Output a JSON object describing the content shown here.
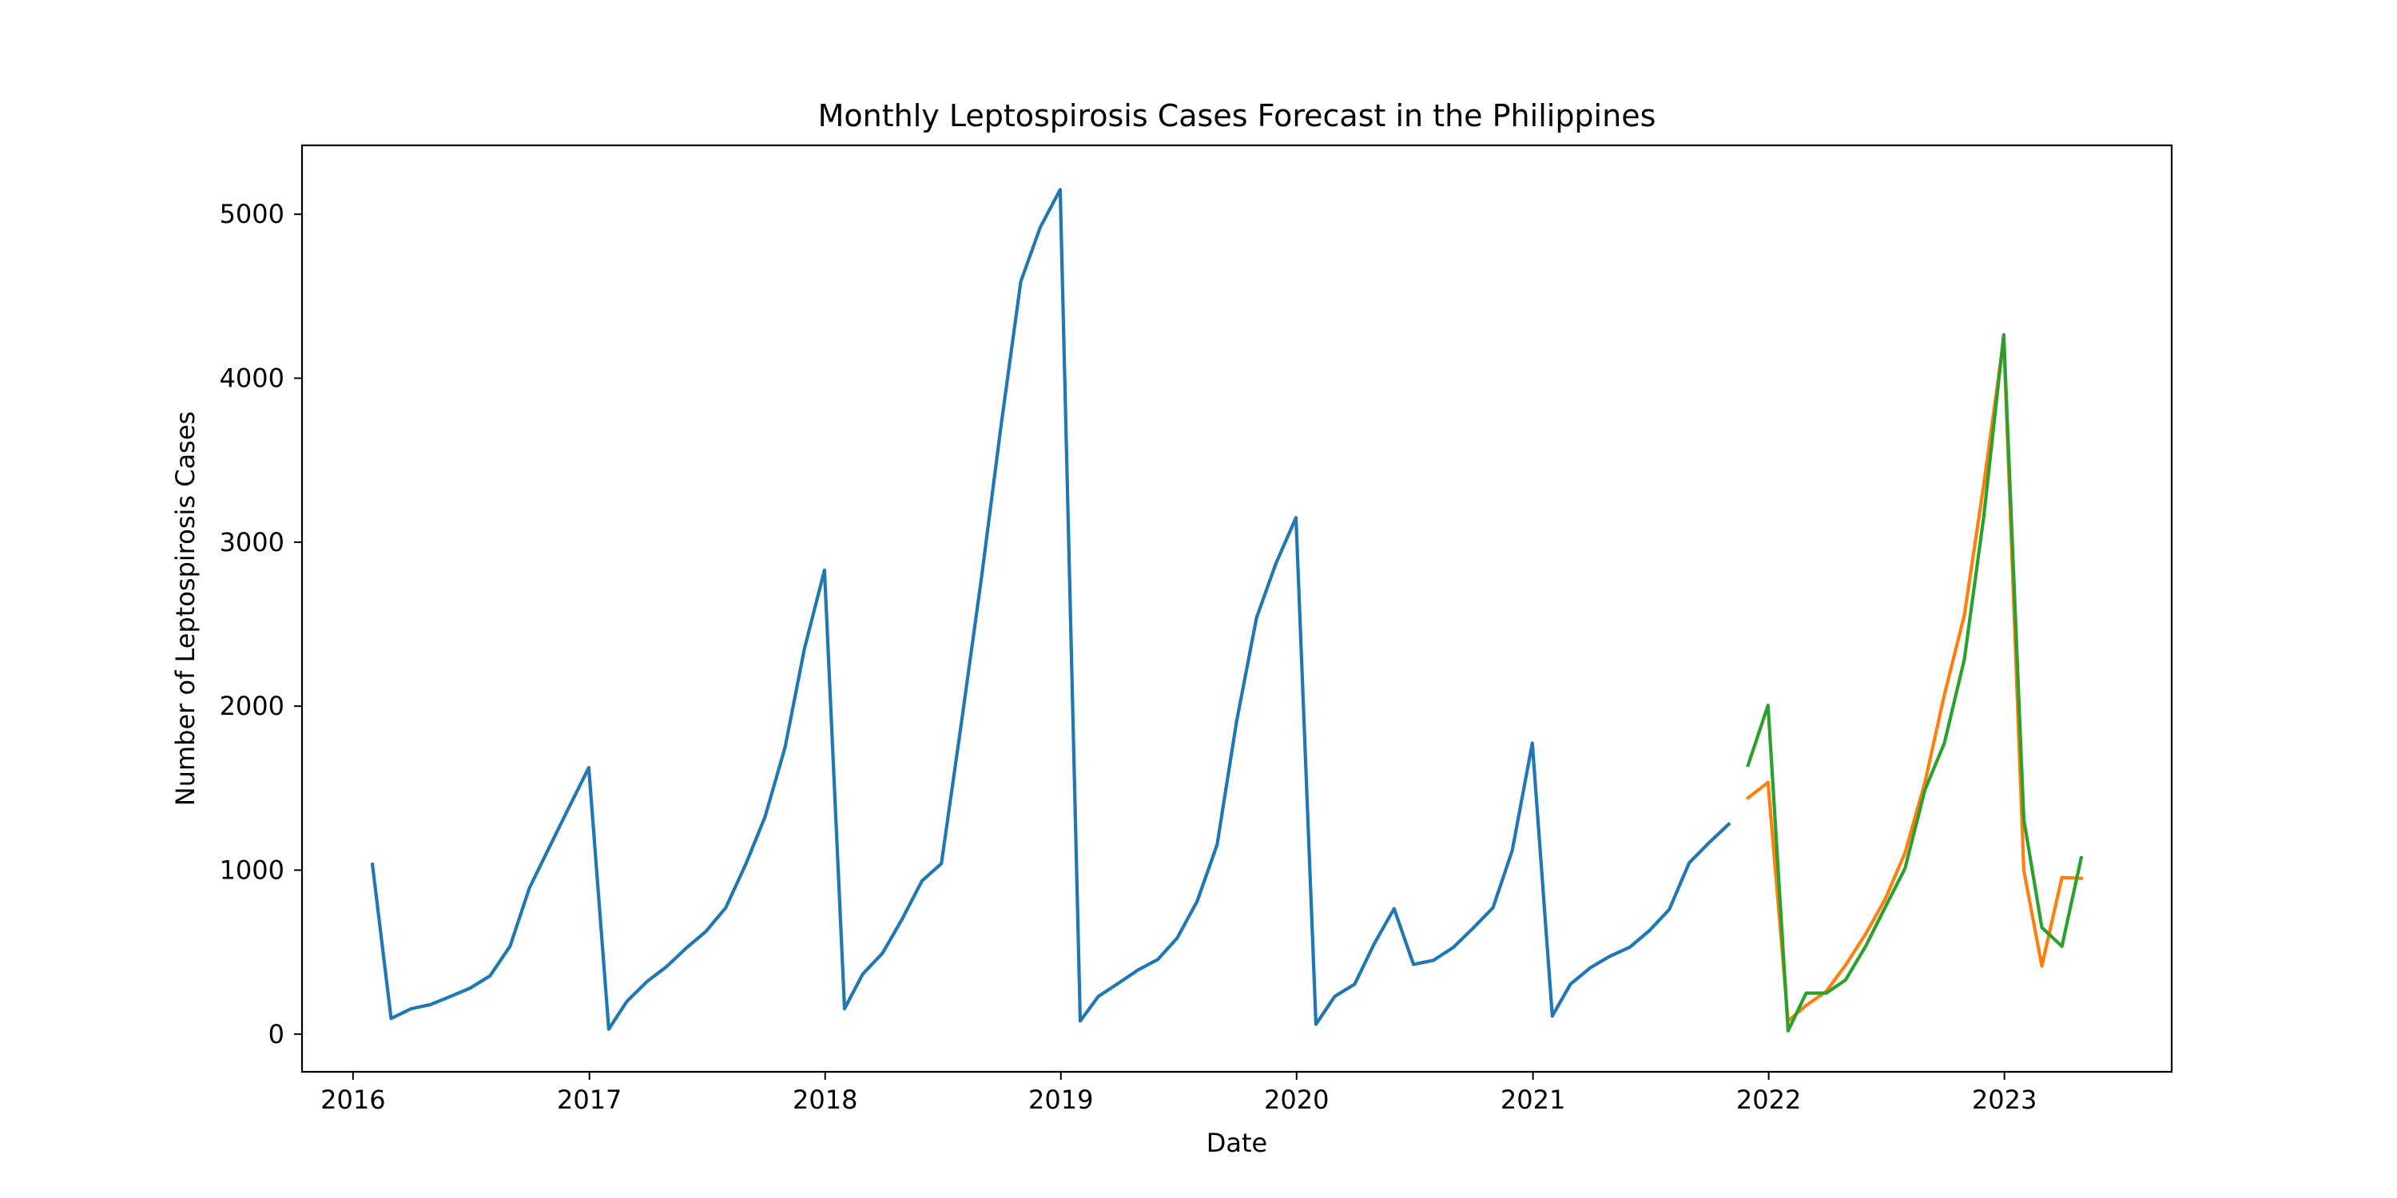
{
  "chart_data": {
    "type": "line",
    "title": "Monthly Leptospirosis Cases Forecast in the Philippines",
    "xlabel": "Date",
    "ylabel": "Number of Leptospirosis Cases",
    "x_type": "date",
    "xlim": [
      "2015-10-14",
      "2023-09-17"
    ],
    "ylim": [
      -230,
      5420
    ],
    "x_ticks": [
      "2016",
      "2017",
      "2018",
      "2019",
      "2020",
      "2021",
      "2022",
      "2023"
    ],
    "y_ticks": [
      0,
      1000,
      2000,
      3000,
      4000,
      5000
    ],
    "grid": false,
    "legend": "none",
    "series": [
      {
        "color": "#1f77b4",
        "points": [
          [
            "2016-01-31",
            1035
          ],
          [
            "2016-02-29",
            95
          ],
          [
            "2016-03-31",
            155
          ],
          [
            "2016-04-30",
            180
          ],
          [
            "2016-05-31",
            230
          ],
          [
            "2016-06-30",
            280
          ],
          [
            "2016-07-31",
            355
          ],
          [
            "2016-08-31",
            535
          ],
          [
            "2016-09-30",
            890
          ],
          [
            "2016-10-31",
            1140
          ],
          [
            "2016-11-30",
            1380
          ],
          [
            "2016-12-31",
            1625
          ],
          [
            "2017-01-31",
            30
          ],
          [
            "2017-02-28",
            200
          ],
          [
            "2017-03-31",
            320
          ],
          [
            "2017-04-30",
            410
          ],
          [
            "2017-05-31",
            525
          ],
          [
            "2017-06-30",
            625
          ],
          [
            "2017-07-31",
            770
          ],
          [
            "2017-08-31",
            1035
          ],
          [
            "2017-09-30",
            1325
          ],
          [
            "2017-10-31",
            1750
          ],
          [
            "2017-11-30",
            2350
          ],
          [
            "2017-12-31",
            2830
          ],
          [
            "2018-01-31",
            155
          ],
          [
            "2018-02-28",
            365
          ],
          [
            "2018-03-31",
            495
          ],
          [
            "2018-04-30",
            700
          ],
          [
            "2018-05-31",
            935
          ],
          [
            "2018-06-30",
            1040
          ],
          [
            "2018-07-31",
            1900
          ],
          [
            "2018-08-31",
            2780
          ],
          [
            "2018-09-30",
            3700
          ],
          [
            "2018-10-31",
            4590
          ],
          [
            "2018-11-30",
            4920
          ],
          [
            "2018-12-31",
            5150
          ],
          [
            "2019-01-31",
            80
          ],
          [
            "2019-02-28",
            230
          ],
          [
            "2019-03-31",
            310
          ],
          [
            "2019-04-30",
            390
          ],
          [
            "2019-05-31",
            455
          ],
          [
            "2019-06-30",
            585
          ],
          [
            "2019-07-31",
            810
          ],
          [
            "2019-08-31",
            1155
          ],
          [
            "2019-09-30",
            1905
          ],
          [
            "2019-10-31",
            2540
          ],
          [
            "2019-11-30",
            2870
          ],
          [
            "2019-12-31",
            3150
          ],
          [
            "2020-01-31",
            60
          ],
          [
            "2020-02-29",
            230
          ],
          [
            "2020-03-31",
            305
          ],
          [
            "2020-04-30",
            550
          ],
          [
            "2020-05-31",
            765
          ],
          [
            "2020-06-30",
            425
          ],
          [
            "2020-07-31",
            450
          ],
          [
            "2020-08-31",
            530
          ],
          [
            "2020-09-30",
            645
          ],
          [
            "2020-10-31",
            770
          ],
          [
            "2020-11-30",
            1120
          ],
          [
            "2020-12-31",
            1775
          ],
          [
            "2021-01-31",
            110
          ],
          [
            "2021-02-28",
            305
          ],
          [
            "2021-03-31",
            405
          ],
          [
            "2021-04-30",
            475
          ],
          [
            "2021-05-31",
            530
          ],
          [
            "2021-06-30",
            630
          ],
          [
            "2021-07-31",
            760
          ],
          [
            "2021-08-31",
            1045
          ],
          [
            "2021-09-30",
            1165
          ],
          [
            "2021-10-31",
            1280
          ]
        ]
      },
      {
        "color": "#ff7f0e",
        "points": [
          [
            "2021-11-30",
            1440
          ],
          [
            "2021-12-31",
            1535
          ],
          [
            "2022-01-31",
            80
          ],
          [
            "2022-02-28",
            175
          ],
          [
            "2022-03-31",
            260
          ],
          [
            "2022-04-30",
            420
          ],
          [
            "2022-05-31",
            610
          ],
          [
            "2022-06-30",
            820
          ],
          [
            "2022-07-31",
            1105
          ],
          [
            "2022-08-31",
            1535
          ],
          [
            "2022-09-30",
            2070
          ],
          [
            "2022-10-31",
            2555
          ],
          [
            "2022-11-30",
            3350
          ],
          [
            "2022-12-31",
            4240
          ],
          [
            "2023-01-31",
            1000
          ],
          [
            "2023-02-28",
            415
          ],
          [
            "2023-03-31",
            955
          ],
          [
            "2023-04-30",
            950
          ]
        ]
      },
      {
        "color": "#2ca02c",
        "points": [
          [
            "2021-11-30",
            1640
          ],
          [
            "2021-12-31",
            2005
          ],
          [
            "2022-01-31",
            20
          ],
          [
            "2022-02-28",
            250
          ],
          [
            "2022-03-31",
            250
          ],
          [
            "2022-04-30",
            330
          ],
          [
            "2022-05-31",
            535
          ],
          [
            "2022-06-30",
            770
          ],
          [
            "2022-07-31",
            1010
          ],
          [
            "2022-08-31",
            1490
          ],
          [
            "2022-09-30",
            1775
          ],
          [
            "2022-10-31",
            2285
          ],
          [
            "2022-11-30",
            3155
          ],
          [
            "2022-12-31",
            4265
          ],
          [
            "2023-01-31",
            1310
          ],
          [
            "2023-02-28",
            650
          ],
          [
            "2023-03-31",
            535
          ],
          [
            "2023-04-30",
            1075
          ]
        ]
      }
    ]
  }
}
